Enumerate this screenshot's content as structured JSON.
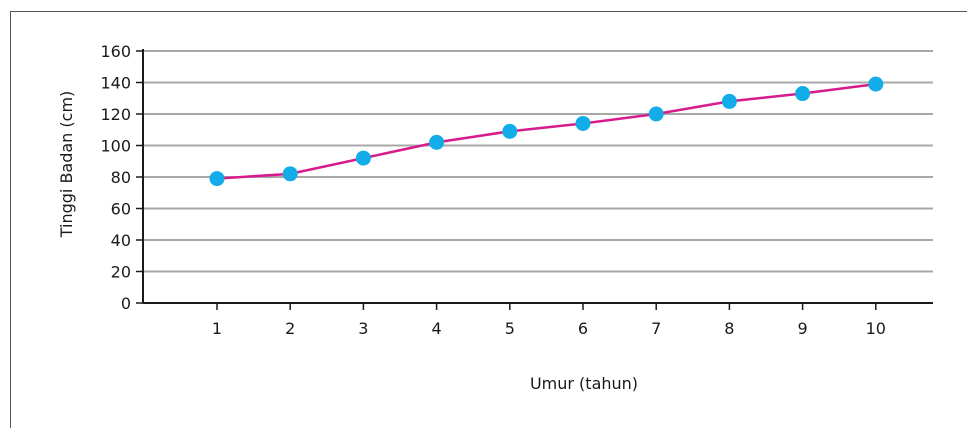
{
  "chart_data": {
    "type": "line",
    "title": "",
    "xlabel": "Umur (tahun)",
    "ylabel": "Tinggi Badan (cm)",
    "x": [
      1,
      2,
      3,
      4,
      5,
      6,
      7,
      8,
      9,
      10
    ],
    "y_ticks": [
      0,
      20,
      40,
      60,
      80,
      100,
      120,
      140,
      160
    ],
    "ylim": [
      0,
      160
    ],
    "grid": true,
    "series": [
      {
        "values": [
          79,
          82,
          92,
          102,
          109,
          114,
          120,
          128,
          133,
          139
        ],
        "line_color": "#d81b8c",
        "marker_color": "#12ace8"
      }
    ],
    "gridline_color": "#a8a8a8",
    "axis_color": "#1a1a1a"
  }
}
